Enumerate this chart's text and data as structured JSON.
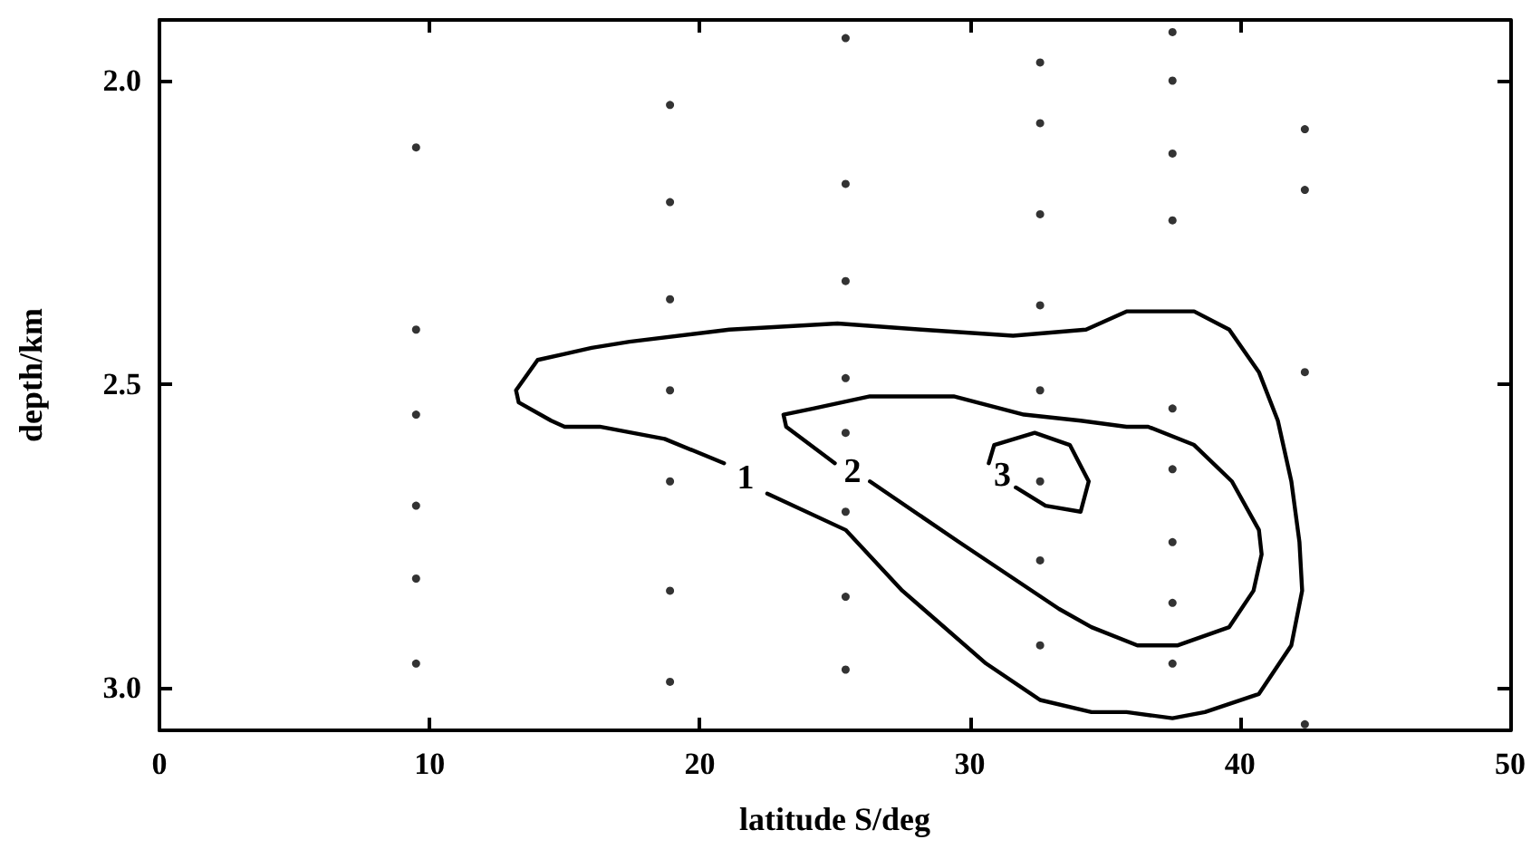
{
  "chart_data": {
    "type": "line",
    "xlabel": "latitude S/deg",
    "ylabel": "depth/km",
    "xlim": [
      0,
      50
    ],
    "xticks": [
      0,
      10,
      20,
      30,
      40,
      50
    ],
    "ylim": [
      3.07,
      1.9
    ],
    "yticks": [
      {
        "value": 2,
        "label": "2.0"
      },
      {
        "value": 2.5,
        "label": "2.5"
      },
      {
        "value": 3,
        "label": "3.0"
      }
    ],
    "grid": false,
    "line_style": "solid",
    "series": [
      {
        "type": "line",
        "color": "#000000",
        "x": [
          20.9,
          18.7,
          16.3,
          15.0,
          14.5,
          13.3,
          13.2,
          14.0,
          15.0,
          16.0,
          17.4,
          21.1,
          25.1,
          28.2,
          31.6,
          34.3,
          35.8,
          36.6,
          38.3,
          39.6,
          40.7,
          41.4,
          41.9,
          42.2,
          42.3,
          41.9,
          40.7,
          38.7,
          37.5,
          35.8,
          34.5,
          32.6,
          30.6,
          27.5,
          25.4,
          22.5
        ],
        "values": [
          2.63,
          2.59,
          2.57,
          2.57,
          2.56,
          2.53,
          2.51,
          2.46,
          2.45,
          2.44,
          2.43,
          2.41,
          2.4,
          2.41,
          2.42,
          2.41,
          2.38,
          2.38,
          2.38,
          2.41,
          2.48,
          2.56,
          2.66,
          2.76,
          2.84,
          2.93,
          3.01,
          3.04,
          3.05,
          3.04,
          3.04,
          3.02,
          2.96,
          2.84,
          2.74,
          2.68
        ]
      },
      {
        "type": "line",
        "color": "#000000",
        "x": [
          25.0,
          23.2,
          23.1,
          24.2,
          26.3,
          29.4,
          32.0,
          34.1,
          35.8,
          36.6,
          38.3,
          39.7,
          40.7,
          40.8,
          40.5,
          39.6,
          37.7,
          36.2,
          34.5,
          33.3,
          29.6,
          26.3
        ],
        "values": [
          2.63,
          2.57,
          2.55,
          2.54,
          2.52,
          2.52,
          2.55,
          2.56,
          2.57,
          2.57,
          2.6,
          2.66,
          2.74,
          2.78,
          2.84,
          2.9,
          2.93,
          2.93,
          2.9,
          2.87,
          2.76,
          2.66
        ]
      },
      {
        "type": "line",
        "color": "#000000",
        "x": [
          31.7,
          32.8,
          34.1,
          34.4,
          33.7,
          32.4,
          30.9,
          30.7
        ],
        "values": [
          2.67,
          2.7,
          2.71,
          2.66,
          2.6,
          2.58,
          2.6,
          2.63
        ]
      },
      {
        "type": "scatter",
        "color": "#000000",
        "marker": "circle",
        "x": [
          9.5,
          9.5,
          9.5,
          9.5,
          9.5,
          9.5,
          18.9,
          18.9,
          18.9,
          18.9,
          18.9,
          18.9,
          18.9,
          25.4,
          25.4,
          25.4,
          25.4,
          25.4,
          25.4,
          25.4,
          25.4,
          32.6,
          32.6,
          32.6,
          32.6,
          32.6,
          32.6,
          32.6,
          32.6,
          37.5,
          37.5,
          37.5,
          37.5,
          37.5,
          37.5,
          37.5,
          37.5,
          37.5,
          42.4,
          42.4,
          42.4,
          42.4
        ],
        "values": [
          2.11,
          2.41,
          2.55,
          2.7,
          2.82,
          2.96,
          2.04,
          2.2,
          2.36,
          2.51,
          2.66,
          2.84,
          2.99,
          1.93,
          2.17,
          2.33,
          2.49,
          2.58,
          2.71,
          2.85,
          2.97,
          1.97,
          2.07,
          2.22,
          2.37,
          2.51,
          2.66,
          2.79,
          2.93,
          1.92,
          2.0,
          2.12,
          2.23,
          2.54,
          2.64,
          2.76,
          2.86,
          2.96,
          2.08,
          2.18,
          2.48,
          3.06
        ]
      }
    ],
    "annotations": [
      "1",
      "2",
      "3"
    ]
  }
}
